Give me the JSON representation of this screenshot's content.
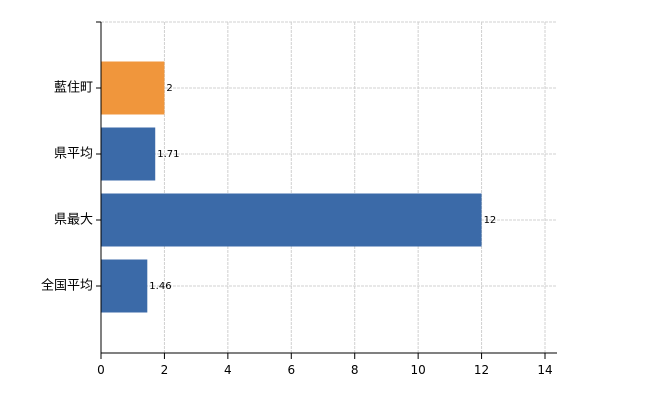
{
  "chart_data": {
    "type": "bar",
    "orientation": "horizontal",
    "categories": [
      "藍住町",
      "県平均",
      "県最大",
      "全国平均"
    ],
    "values": [
      2,
      1.71,
      12,
      1.46
    ],
    "value_labels": [
      "2",
      "1.71",
      "12",
      "1.46"
    ],
    "bar_colors": [
      "#f0963c",
      "#3b6aa8",
      "#3b6aa8",
      "#3b6aa8"
    ],
    "title": "",
    "xlabel": "",
    "ylabel": "",
    "xlim": [
      0,
      14
    ],
    "x_ticks": [
      0,
      2,
      4,
      6,
      8,
      10,
      12,
      14
    ],
    "grid": true,
    "legend": "none"
  }
}
